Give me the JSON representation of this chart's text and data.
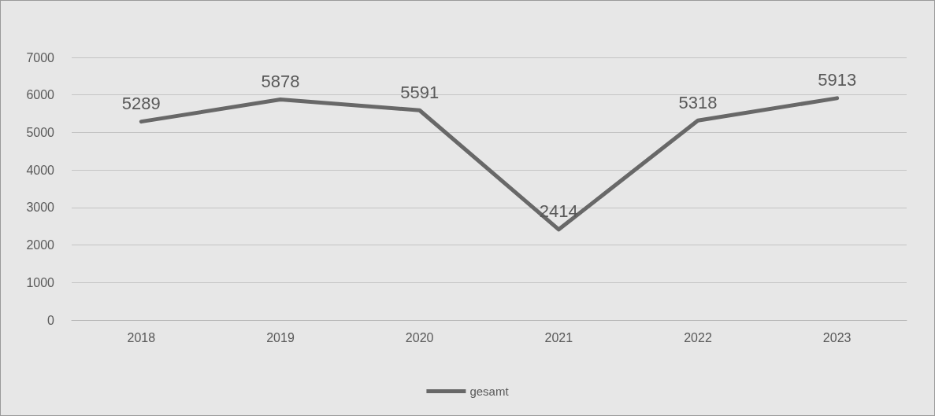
{
  "chart_data": {
    "type": "line",
    "categories": [
      "2018",
      "2019",
      "2020",
      "2021",
      "2022",
      "2023"
    ],
    "series": [
      {
        "name": "gesamt",
        "color": "#686868",
        "values": [
          5289,
          5878,
          5591,
          2414,
          5318,
          5913
        ]
      }
    ],
    "ylim": [
      0,
      7000
    ],
    "yticks": [
      0,
      1000,
      2000,
      3000,
      4000,
      5000,
      6000,
      7000
    ],
    "grid": "y",
    "legend": "bottom",
    "data_labels": true,
    "marker": "none",
    "line_style": "solid"
  }
}
